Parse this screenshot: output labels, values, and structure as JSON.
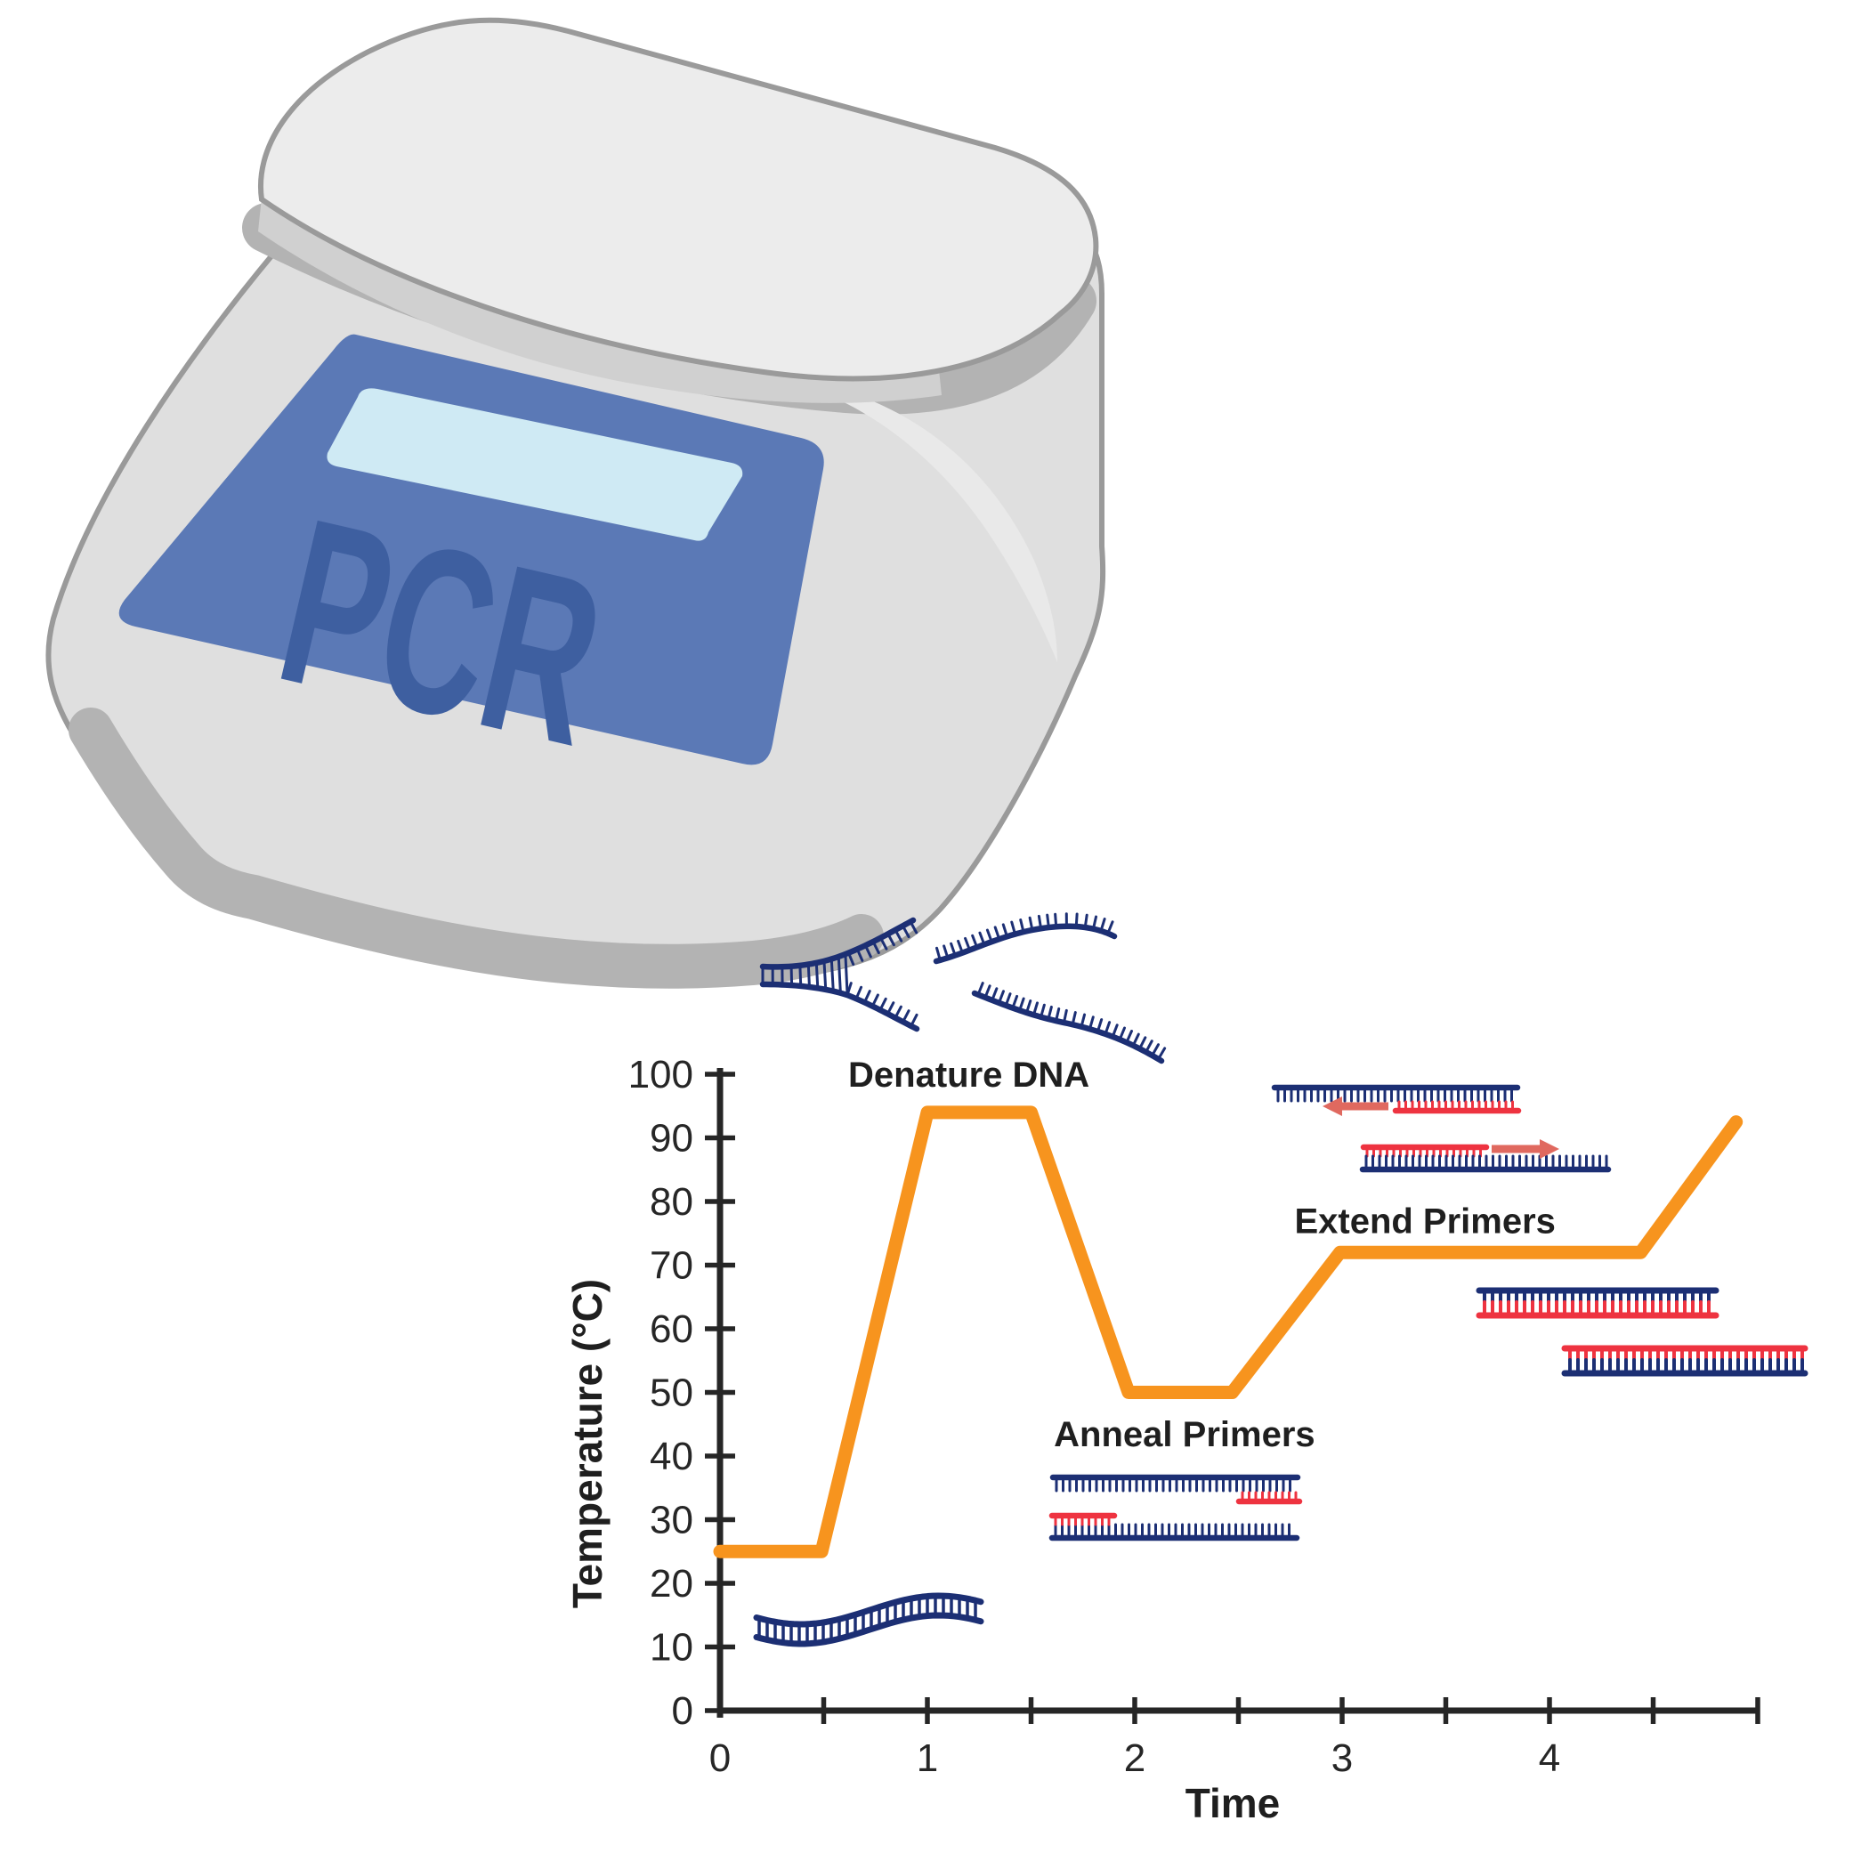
{
  "machine": {
    "device_label": "PCR"
  },
  "palette": {
    "machine_body": "#dfdfdf",
    "machine_lid": "#ececec",
    "machine_lid_side": "#d0d0d0",
    "machine_band": "#b3b3b3",
    "machine_outline": "#9a9a9a",
    "machine_highlight": "#e9e9e9",
    "panel_blue": "#5b79b6",
    "panel_text": "#3e5fa0",
    "screen_blue": "#cfeaf4",
    "dna_navy": "#1c2f74",
    "primer_red": "#ee3340",
    "arrow_red": "#e0695f",
    "line_orange": "#f7941e",
    "axis": "#262626"
  },
  "chart_data": {
    "type": "line",
    "title": "",
    "xlabel": "Time",
    "ylabel": "Temperature (°C)",
    "xlim": [
      0,
      5.05
    ],
    "ylim": [
      0,
      100
    ],
    "grid": false,
    "legend": false,
    "x_ticks_labeled": [
      0,
      1,
      2,
      3,
      4
    ],
    "x_minor_step": 0.5,
    "y_ticks": [
      0,
      10,
      20,
      30,
      40,
      50,
      60,
      70,
      80,
      90,
      100
    ],
    "series": [
      {
        "name": "PCR thermal cycle",
        "color": "#f7941e",
        "points": [
          [
            0,
            25
          ],
          [
            0.49,
            25
          ],
          [
            1.0,
            94
          ],
          [
            1.5,
            94
          ],
          [
            1.97,
            50
          ],
          [
            2.47,
            50
          ],
          [
            2.99,
            72
          ],
          [
            4.44,
            72
          ],
          [
            4.9,
            92.5
          ]
        ]
      }
    ],
    "annotations": [
      {
        "label": "Denature DNA",
        "x": 1.2,
        "y": 100
      },
      {
        "label": "Anneal Primers",
        "x": 2.24,
        "y": 43.5
      },
      {
        "label": "Extend Primers",
        "x": 3.4,
        "y": 77
      }
    ]
  }
}
